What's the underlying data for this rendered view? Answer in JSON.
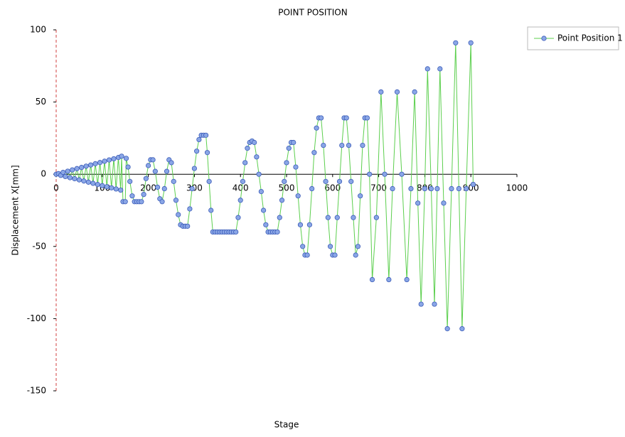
{
  "chart_data": {
    "type": "line",
    "title": "POINT POSITION",
    "x_label": "Stage",
    "y_label": "Displacement X[mm]",
    "xlim": [
      0,
      1000
    ],
    "xticks": [
      0,
      100,
      200,
      300,
      400,
      500,
      600,
      700,
      800,
      900,
      1000
    ],
    "ylim": [
      -150,
      100
    ],
    "yticks": [
      -150,
      -100,
      -50,
      0,
      50,
      100
    ],
    "legend": "top-right",
    "x": [
      0,
      5,
      10,
      15,
      20,
      25,
      30,
      35,
      40,
      45,
      50,
      55,
      60,
      65,
      70,
      75,
      80,
      85,
      90,
      95,
      100,
      105,
      110,
      115,
      120,
      125,
      130,
      135,
      140,
      142,
      145,
      150,
      152,
      156,
      160,
      165,
      170,
      175,
      180,
      185,
      190,
      195,
      200,
      205,
      210,
      215,
      220,
      225,
      230,
      235,
      240,
      245,
      250,
      255,
      260,
      265,
      270,
      275,
      280,
      285,
      290,
      295,
      300,
      305,
      310,
      315,
      320,
      325,
      328,
      332,
      336,
      340,
      345,
      350,
      355,
      360,
      365,
      370,
      375,
      380,
      385,
      390,
      395,
      400,
      405,
      410,
      415,
      420,
      425,
      430,
      435,
      440,
      445,
      450,
      455,
      460,
      465,
      470,
      475,
      480,
      485,
      490,
      495,
      500,
      505,
      510,
      515,
      520,
      525,
      530,
      535,
      540,
      545,
      550,
      555,
      560,
      565,
      570,
      575,
      580,
      585,
      590,
      595,
      600,
      605,
      610,
      615,
      620,
      625,
      630,
      635,
      640,
      645,
      650,
      655,
      660,
      665,
      670,
      675,
      680,
      686,
      695,
      705,
      713,
      722,
      730,
      740,
      750,
      761,
      770,
      778,
      785,
      792,
      800,
      806,
      814,
      821,
      827,
      833,
      841,
      849,
      858,
      867,
      874,
      881,
      890,
      900,
      905
    ],
    "series": [
      {
        "name": "Point Position 1",
        "color": "#5ccf4e",
        "marker_color": "#8aa6e6",
        "marker_edge": "#3b5cb8",
        "values": [
          0,
          0.4,
          -0.8,
          1.3,
          -1.6,
          2.1,
          -2.4,
          3,
          -3.1,
          3.9,
          -3.9,
          4.7,
          -4.7,
          5.6,
          -5.5,
          6.4,
          -6.3,
          7.3,
          -7.1,
          8.1,
          -7.9,
          9,
          -8.6,
          9.9,
          -9.4,
          10.7,
          -10.2,
          11.6,
          -11,
          12.5,
          -19,
          -19,
          11,
          5,
          -5,
          -15,
          -19,
          -19,
          -19,
          -19,
          -14,
          -3,
          6,
          10,
          10,
          2,
          -9,
          -17,
          -19,
          -10,
          2,
          10,
          8,
          -5,
          -18,
          -28,
          -35,
          -36,
          -36,
          -36,
          -24,
          -10,
          4,
          16,
          24,
          27,
          27,
          27,
          15,
          -5,
          -25,
          -40,
          -40,
          -40,
          -40,
          -40,
          -40,
          -40,
          -40,
          -40,
          -40,
          -40,
          -30,
          -18,
          -5,
          8,
          18,
          22,
          23,
          22,
          12,
          0,
          -12,
          -25,
          -35,
          -40,
          -40,
          -40,
          -40,
          -40,
          -30,
          -18,
          -5,
          8,
          18,
          22,
          22,
          5,
          -15,
          -35,
          -50,
          -56,
          -56,
          -35,
          -10,
          15,
          32,
          39,
          39,
          20,
          -5,
          -30,
          -50,
          -56,
          -56,
          -30,
          -5,
          20,
          39,
          39,
          20,
          -5,
          -30,
          -56,
          -50,
          -15,
          20,
          39,
          39,
          0,
          -73,
          -30,
          57,
          0,
          -73,
          -10,
          57,
          0,
          -73,
          -10,
          57,
          -20,
          -90,
          -10,
          73,
          -10,
          -90,
          -10,
          73,
          -20,
          -107,
          -10,
          91,
          -10,
          -107,
          -10,
          91,
          -7
        ]
      }
    ]
  }
}
